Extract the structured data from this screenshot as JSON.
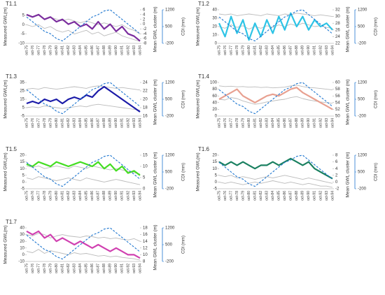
{
  "chart_data": [
    {
      "type": "line",
      "title": "T1.1",
      "ylabel": "Measured GWL(m)",
      "y2label": "Mean GWL cluster (m)",
      "y3label": "CDI (mm)",
      "categories": [
        "oct-75",
        "oct-76",
        "oct-77",
        "oct-78",
        "oct-79",
        "oct-80",
        "oct-81",
        "oct-82",
        "oct-83",
        "oct-84",
        "oct-85",
        "oct-86",
        "oct-87",
        "oct-88",
        "oct-89",
        "oct-90",
        "oct-91",
        "oct-92",
        "oct-93",
        "oct-94"
      ],
      "ylim": [
        -10,
        8
      ],
      "yticks": [
        -10,
        -5,
        0,
        5
      ],
      "y2lim": [
        -8,
        6
      ],
      "y2ticks": [
        -8,
        -6,
        -4,
        -2,
        0,
        2,
        4,
        6
      ],
      "y3lim": [
        -200,
        1200
      ],
      "y3ticks": [
        -200,
        500,
        1200
      ],
      "series": [
        {
          "color": "#bbbbbb",
          "values": [
            5,
            4,
            5,
            3,
            4,
            3,
            2,
            3,
            2,
            1,
            2,
            1,
            0,
            1,
            0,
            -1,
            0,
            -2,
            -3,
            -5
          ]
        },
        {
          "color": "#bbbbbb",
          "values": [
            0,
            -1,
            0,
            -2,
            -1,
            -3,
            -4,
            -3,
            -5,
            -4,
            -3,
            -5,
            -4,
            -6,
            -5,
            -4,
            -6,
            -7,
            -8,
            -9
          ]
        },
        {
          "color": "#7b2d9e",
          "axis": "y2",
          "values": [
            4,
            3,
            4,
            2,
            3,
            1,
            2,
            0,
            1,
            -1,
            0,
            -2,
            1,
            -2,
            0,
            -3,
            -1,
            -4,
            -5,
            -7
          ]
        },
        {
          "color": "#1f77d0",
          "axis": "y3",
          "style": "dashed",
          "values": [
            900,
            700,
            500,
            300,
            200,
            0,
            -100,
            100,
            300,
            500,
            700,
            900,
            1000,
            1150,
            1200,
            1000,
            800,
            600,
            400,
            200
          ]
        }
      ]
    },
    {
      "type": "line",
      "title": "T1.2",
      "ylabel": "Measured GWL(m)",
      "y2label": "Mean GWL cluster (m)",
      "y3label": "CDI (mm)",
      "categories": [
        "oct-75",
        "oct-76",
        "oct-77",
        "oct-78",
        "oct-79",
        "oct-80",
        "oct-81",
        "oct-82",
        "oct-83",
        "oct-84",
        "oct-85",
        "oct-86",
        "oct-87",
        "oct-88",
        "oct-89",
        "oct-90",
        "oct-91",
        "oct-92",
        "oct-93",
        "oct-94"
      ],
      "ylim": [
        0,
        40
      ],
      "yticks": [
        0,
        10,
        20,
        30,
        40
      ],
      "y2lim": [
        22,
        32
      ],
      "y2ticks": [
        22,
        24,
        26,
        28,
        30,
        32
      ],
      "y3lim": [
        -200,
        1200
      ],
      "y3ticks": [
        -200,
        500,
        1200
      ],
      "series": [
        {
          "color": "#bbbbbb",
          "values": [
            35,
            34,
            35,
            33,
            34,
            35,
            34,
            33,
            35,
            34,
            33,
            35,
            34,
            36,
            35,
            34,
            33,
            34,
            33,
            32
          ]
        },
        {
          "color": "#bbbbbb",
          "values": [
            20,
            18,
            22,
            19,
            21,
            17,
            20,
            18,
            21,
            19,
            22,
            20,
            23,
            21,
            24,
            22,
            20,
            21,
            19,
            18
          ]
        },
        {
          "color": "#2ec4e6",
          "axis": "y2",
          "values": [
            28,
            24,
            30,
            25,
            29,
            23,
            28,
            24,
            29,
            25,
            30,
            26,
            31,
            27,
            30,
            26,
            29,
            27,
            28,
            26
          ]
        },
        {
          "color": "#1f77d0",
          "axis": "y3",
          "style": "dashed",
          "values": [
            900,
            700,
            500,
            300,
            200,
            0,
            -100,
            100,
            300,
            500,
            700,
            900,
            1000,
            1150,
            1200,
            1000,
            800,
            600,
            400,
            200
          ]
        }
      ]
    },
    {
      "type": "line",
      "title": "T1.3",
      "ylabel": "Measured GWL(m)",
      "y2label": "Mean GWL cluster (m)",
      "y3label": "CDI (mm)",
      "categories": [
        "oct-75",
        "oct-76",
        "oct-77",
        "oct-78",
        "oct-79",
        "oct-80",
        "oct-81",
        "oct-82",
        "oct-83",
        "oct-84",
        "oct-85",
        "oct-86",
        "oct-87",
        "oct-88",
        "oct-89",
        "oct-90",
        "oct-91",
        "oct-92",
        "oct-93",
        "oct-94"
      ],
      "ylim": [
        -5,
        35
      ],
      "yticks": [
        -5,
        5,
        15,
        25,
        35
      ],
      "y2lim": [
        16,
        24
      ],
      "y2ticks": [
        16,
        18,
        20,
        22,
        24
      ],
      "y3lim": [
        -200,
        1200
      ],
      "y3ticks": [
        -200,
        500,
        1200
      ],
      "series": [
        {
          "color": "#bbbbbb",
          "values": [
            27,
            28,
            27,
            29,
            28,
            27,
            28,
            29,
            30,
            29,
            28,
            30,
            31,
            30,
            29,
            28,
            29,
            28,
            27,
            26
          ]
        },
        {
          "color": "#bbbbbb",
          "values": [
            5,
            6,
            5,
            7,
            6,
            5,
            4,
            5,
            6,
            7,
            6,
            8,
            9,
            8,
            7,
            6,
            5,
            4,
            3,
            2
          ]
        },
        {
          "color": "#1a1aa8",
          "axis": "y2",
          "values": [
            19,
            19.5,
            19,
            20,
            19.5,
            20,
            19,
            20,
            20.5,
            20,
            21,
            20.5,
            22,
            23,
            22,
            21,
            20,
            19,
            18,
            17
          ]
        },
        {
          "color": "#1f77d0",
          "axis": "y3",
          "style": "dashed",
          "values": [
            900,
            700,
            500,
            300,
            200,
            0,
            -100,
            100,
            300,
            500,
            700,
            900,
            1000,
            1150,
            1200,
            1000,
            800,
            600,
            400,
            200
          ]
        }
      ]
    },
    {
      "type": "line",
      "title": "T1.4",
      "ylabel": "Measured GWL(m)",
      "y2label": "Mean GWL cluster (m)",
      "y3label": "CDI (mm)",
      "categories": [
        "oct-75",
        "oct-76",
        "oct-77",
        "oct-78",
        "oct-79",
        "oct-80",
        "oct-81",
        "oct-82",
        "oct-83",
        "oct-84",
        "oct-85",
        "oct-86",
        "oct-87",
        "oct-88",
        "oct-89",
        "oct-90",
        "oct-91",
        "oct-92",
        "oct-93",
        "oct-94"
      ],
      "ylim": [
        0,
        100
      ],
      "yticks": [
        0,
        20,
        40,
        60,
        80,
        100
      ],
      "y2lim": [
        50,
        60
      ],
      "y2ticks": [
        50,
        52,
        54,
        56,
        58,
        60
      ],
      "y3lim": [
        -200,
        1200
      ],
      "y3ticks": [
        -200,
        500,
        1200
      ],
      "series": [
        {
          "color": "#bbbbbb",
          "values": [
            90,
            88,
            89,
            87,
            88,
            86,
            87,
            85,
            86,
            84,
            85,
            86,
            90,
            92,
            88,
            85,
            84,
            82,
            80,
            78
          ]
        },
        {
          "color": "#bbbbbb",
          "values": [
            50,
            48,
            55,
            52,
            45,
            40,
            35,
            38,
            42,
            45,
            48,
            50,
            55,
            58,
            52,
            48,
            45,
            42,
            40,
            38
          ]
        },
        {
          "color": "#e8a090",
          "axis": "y2",
          "values": [
            55,
            56,
            57,
            58,
            56,
            55,
            54,
            55,
            56,
            56.5,
            56,
            57,
            58,
            58.5,
            57,
            56,
            55,
            54,
            53,
            52
          ]
        },
        {
          "color": "#1f77d0",
          "axis": "y3",
          "style": "dashed",
          "values": [
            900,
            700,
            500,
            300,
            200,
            0,
            -100,
            100,
            300,
            500,
            700,
            900,
            1000,
            1150,
            1200,
            1000,
            800,
            600,
            400,
            200
          ]
        }
      ]
    },
    {
      "type": "line",
      "title": "T1.5",
      "ylabel": "Measured GWL(m)",
      "y2label": "Mean GWL cluster (m)",
      "y3label": "CDI (mm)",
      "categories": [
        "oct-75",
        "oct-76",
        "oct-77",
        "oct-78",
        "oct-79",
        "oct-80",
        "oct-81",
        "oct-82",
        "oct-83",
        "oct-84",
        "oct-85",
        "oct-86",
        "oct-87",
        "oct-88",
        "oct-89",
        "oct-90",
        "oct-91",
        "oct-92",
        "oct-93",
        "oct-94"
      ],
      "ylim": [
        -5,
        20
      ],
      "yticks": [
        -5,
        0,
        5,
        10,
        15,
        20
      ],
      "y2lim": [
        0,
        15
      ],
      "y2ticks": [
        0,
        5,
        10,
        15
      ],
      "y3lim": [
        -200,
        1200
      ],
      "y3ticks": [
        -200,
        500,
        1200
      ],
      "series": [
        {
          "color": "#bbbbbb",
          "values": [
            12,
            11,
            12,
            10,
            11,
            12,
            11,
            10,
            12,
            11,
            10,
            12,
            11,
            10,
            9,
            10,
            9,
            8,
            7,
            6
          ]
        },
        {
          "color": "#bbbbbb",
          "values": [
            3,
            2,
            4,
            3,
            2,
            1,
            2,
            3,
            2,
            1,
            3,
            2,
            1,
            0,
            1,
            2,
            1,
            0,
            -1,
            -2
          ]
        },
        {
          "color": "#44dd22",
          "axis": "y2",
          "values": [
            11,
            10,
            12,
            11,
            10,
            12,
            11,
            10,
            11,
            12,
            11,
            10,
            12,
            9,
            11,
            8,
            10,
            7,
            8,
            6
          ]
        },
        {
          "color": "#1f77d0",
          "axis": "y3",
          "style": "dashed",
          "values": [
            900,
            700,
            500,
            300,
            200,
            0,
            -100,
            100,
            300,
            500,
            700,
            900,
            1000,
            1150,
            1200,
            1000,
            800,
            600,
            400,
            200
          ]
        }
      ]
    },
    {
      "type": "line",
      "title": "T1.6",
      "ylabel": "Measured GWL(m)",
      "y2label": "Mean GWL cluster (m)",
      "y3label": "CDI (mm)",
      "categories": [
        "oct-75",
        "oct-76",
        "oct-77",
        "oct-78",
        "oct-79",
        "oct-80",
        "oct-81",
        "oct-82",
        "oct-83",
        "oct-84",
        "oct-85",
        "oct-86",
        "oct-87",
        "oct-88",
        "oct-89",
        "oct-90",
        "oct-91",
        "oct-92",
        "oct-93",
        "oct-94"
      ],
      "ylim": [
        -5,
        20
      ],
      "yticks": [
        -5,
        0,
        5,
        10,
        15,
        20
      ],
      "y2lim": [
        -2,
        8
      ],
      "y2ticks": [
        -2,
        0,
        2,
        4,
        6,
        8
      ],
      "y3lim": [
        -200,
        1200
      ],
      "y3ticks": [
        -200,
        500,
        1200
      ],
      "series": [
        {
          "color": "#bbbbbb",
          "values": [
            5,
            4,
            5,
            3,
            4,
            3,
            2,
            3,
            4,
            3,
            4,
            5,
            4,
            3,
            2,
            3,
            2,
            1,
            0,
            -1
          ]
        },
        {
          "color": "#bbbbbb",
          "values": [
            0,
            -1,
            0,
            -1,
            -2,
            -1,
            0,
            -1,
            0,
            1,
            0,
            -1,
            0,
            -1,
            -2,
            -1,
            -2,
            -3,
            -3,
            -4
          ]
        },
        {
          "color": "#1a8060",
          "axis": "y2",
          "values": [
            6,
            5,
            6,
            5,
            6,
            5,
            4,
            5,
            5,
            6,
            5,
            6,
            7,
            6,
            5,
            6,
            4,
            3,
            2,
            1
          ]
        },
        {
          "color": "#1f77d0",
          "axis": "y3",
          "style": "dashed",
          "values": [
            900,
            700,
            500,
            300,
            200,
            0,
            -100,
            100,
            300,
            500,
            700,
            900,
            1000,
            1150,
            1200,
            1000,
            800,
            600,
            400,
            200
          ]
        }
      ]
    },
    {
      "type": "line",
      "title": "T1.7",
      "ylabel": "Measured GWL(m)",
      "y2label": "Mean GWL cluster (m)",
      "y3label": "CDI (mm)",
      "categories": [
        "oct-75",
        "oct-76",
        "oct-77",
        "oct-78",
        "oct-79",
        "oct-80",
        "oct-81",
        "oct-82",
        "oct-83",
        "oct-84",
        "oct-85",
        "oct-86",
        "oct-87",
        "oct-88",
        "oct-89",
        "oct-90",
        "oct-91",
        "oct-92",
        "oct-93",
        "oct-94"
      ],
      "ylim": [
        -10,
        40
      ],
      "yticks": [
        -10,
        0,
        10,
        20,
        30,
        40
      ],
      "y2lim": [
        8,
        18
      ],
      "y2ticks": [
        8,
        10,
        12,
        14,
        16,
        18
      ],
      "y3lim": [
        -200,
        1200
      ],
      "y3ticks": [
        -200,
        500,
        1200
      ],
      "series": [
        {
          "color": "#bbbbbb",
          "values": [
            30,
            28,
            32,
            30,
            25,
            28,
            30,
            28,
            27,
            26,
            28,
            27,
            25,
            26,
            24,
            25,
            23,
            22,
            24,
            20
          ]
        },
        {
          "color": "#bbbbbb",
          "values": [
            5,
            3,
            8,
            2,
            6,
            4,
            2,
            0,
            3,
            1,
            2,
            0,
            -2,
            -1,
            -3,
            -2,
            -4,
            -5,
            -6,
            -8
          ]
        },
        {
          "color": "#d040b0",
          "axis": "y2",
          "values": [
            17,
            16,
            17,
            15,
            16,
            14,
            15,
            14,
            13,
            14,
            13,
            12,
            13,
            12,
            11,
            12,
            11,
            10,
            10,
            9
          ]
        },
        {
          "color": "#1f77d0",
          "axis": "y3",
          "style": "dashed",
          "values": [
            900,
            700,
            500,
            300,
            200,
            0,
            -100,
            100,
            300,
            500,
            700,
            900,
            1000,
            1150,
            1200,
            1000,
            800,
            600,
            400,
            200
          ]
        }
      ]
    }
  ]
}
